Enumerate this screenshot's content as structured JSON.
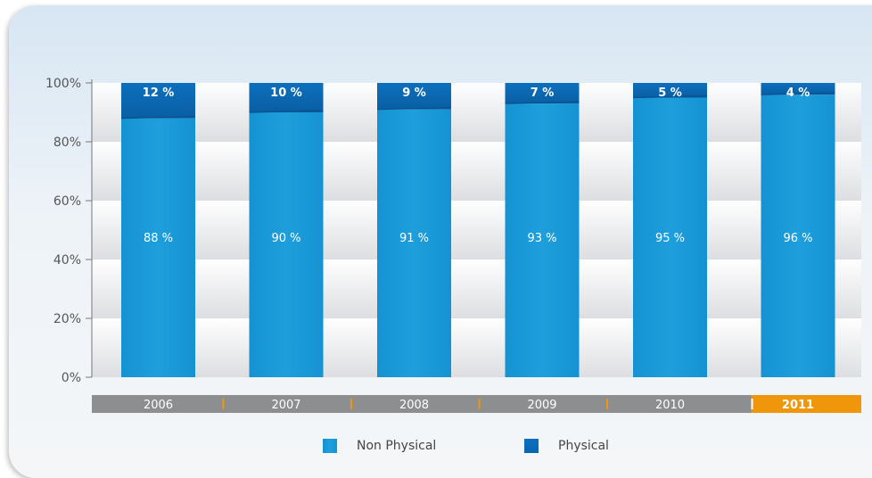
{
  "chart_data": {
    "type": "bar",
    "stacked": true,
    "categories": [
      "2006",
      "2007",
      "2008",
      "2009",
      "2010",
      "2011"
    ],
    "highlighted_category": "2011",
    "series": [
      {
        "name": "Non Physical",
        "values": [
          88,
          90,
          91,
          93,
          95,
          96
        ],
        "labels": [
          "88 %",
          "90 %",
          "91 %",
          "93 %",
          "95 %",
          "96 %"
        ],
        "color": "#1e9fdc"
      },
      {
        "name": "Physical",
        "values": [
          12,
          10,
          9,
          7,
          5,
          4
        ],
        "labels": [
          "12 %",
          "10 %",
          "9 %",
          "7 %",
          "5 %",
          "4 %"
        ],
        "color": "#0a66b0"
      }
    ],
    "y_ticks": [
      "0%",
      "20%",
      "40%",
      "60%",
      "80%",
      "100%"
    ],
    "ylim": [
      0,
      100
    ],
    "grid": "alternating bands",
    "legend_position": "bottom-center",
    "colors": {
      "axis_band": "#8d8e90",
      "highlight": "#f0960a"
    }
  }
}
